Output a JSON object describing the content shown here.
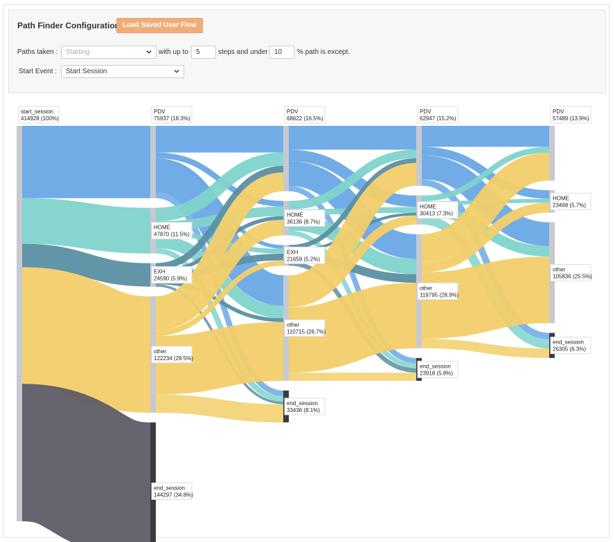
{
  "config": {
    "title": "Path Finder Configuration",
    "load_button": "Load Saved User Flow",
    "paths_taken_label": "Paths taken :",
    "paths_taken_placeholder": "Starting",
    "with_up_to": "with up to",
    "steps_value": "5",
    "steps_and_under": "steps and under",
    "percent_value": "10",
    "percent_suffix": "% path is except.",
    "start_event_label": "Start Event :",
    "start_event_value": "Start Session"
  },
  "chart_data": {
    "type": "sankey",
    "colors": {
      "start_session": "#6aa8e6",
      "PDV": "#6aa8e6",
      "HOME": "#7fd3cc",
      "EXH": "#5b8fa3",
      "other": "#f2cf6a",
      "end_session": "#5e5c66",
      "node_bar": "#c8c9d0",
      "end_bar": "#3a3a3f"
    },
    "columns": [
      {
        "nodes": [
          {
            "name": "start_session",
            "value": 414928,
            "label": "414928 (100%)"
          }
        ]
      },
      {
        "nodes": [
          {
            "name": "PDV",
            "value": 75937,
            "label": "75937 (18.3%)"
          },
          {
            "name": "HOME",
            "value": 47870,
            "label": "47870 (11.5%)"
          },
          {
            "name": "EXH",
            "value": 24590,
            "label": "24590 (5.9%)"
          },
          {
            "name": "other",
            "value": 122234,
            "label": "122234 (29.5%)"
          },
          {
            "name": "end_session",
            "value": 144297,
            "label": "144297 (34.8%)"
          }
        ]
      },
      {
        "nodes": [
          {
            "name": "PDV",
            "value": 68622,
            "label": "68622 (16.5%)"
          },
          {
            "name": "HOME",
            "value": 36136,
            "label": "36136 (8.7%)"
          },
          {
            "name": "EXH",
            "value": 21659,
            "label": "21659 (5.2%)"
          },
          {
            "name": "other",
            "value": 110715,
            "label": "110715 (26.7%)"
          },
          {
            "name": "end_session",
            "value": 33436,
            "label": "33436 (8.1%)"
          }
        ]
      },
      {
        "nodes": [
          {
            "name": "PDV",
            "value": 62947,
            "label": "62947 (15.2%)"
          },
          {
            "name": "HOME",
            "value": 30413,
            "label": "30413 (7.3%)"
          },
          {
            "name": "other",
            "value": 119795,
            "label": "119795 (28.9%)"
          },
          {
            "name": "end_session",
            "value": 23918,
            "label": "23918 (5.8%)"
          }
        ]
      },
      {
        "nodes": [
          {
            "name": "PDV",
            "value": 57489,
            "label": "57489 (13.9%)"
          },
          {
            "name": "HOME",
            "value": 23468,
            "label": "23468 (5.7%)"
          },
          {
            "name": "other",
            "value": 105836,
            "label": "105836 (25.5%)"
          },
          {
            "name": "end_session",
            "value": 26305,
            "label": "26305 (6.3%)"
          }
        ]
      }
    ],
    "links": [
      {
        "source": [
          0,
          0
        ],
        "target": [
          1,
          0
        ],
        "value": 75937
      },
      {
        "source": [
          0,
          0
        ],
        "target": [
          1,
          1
        ],
        "value": 47870
      },
      {
        "source": [
          0,
          0
        ],
        "target": [
          1,
          2
        ],
        "value": 24590
      },
      {
        "source": [
          0,
          0
        ],
        "target": [
          1,
          3
        ],
        "value": 122234
      },
      {
        "source": [
          0,
          0
        ],
        "target": [
          1,
          4
        ],
        "value": 144297
      },
      {
        "source": [
          1,
          0
        ],
        "target": [
          2,
          0
        ],
        "value": 28000
      },
      {
        "source": [
          1,
          0
        ],
        "target": [
          2,
          1
        ],
        "value": 6000
      },
      {
        "source": [
          1,
          0
        ],
        "target": [
          2,
          2
        ],
        "value": 4000
      },
      {
        "source": [
          1,
          0
        ],
        "target": [
          2,
          3
        ],
        "value": 32000
      },
      {
        "source": [
          1,
          0
        ],
        "target": [
          2,
          4
        ],
        "value": 5937
      },
      {
        "source": [
          1,
          1
        ],
        "target": [
          2,
          0
        ],
        "value": 14000
      },
      {
        "source": [
          1,
          1
        ],
        "target": [
          2,
          1
        ],
        "value": 10000
      },
      {
        "source": [
          1,
          1
        ],
        "target": [
          2,
          2
        ],
        "value": 5000
      },
      {
        "source": [
          1,
          1
        ],
        "target": [
          2,
          3
        ],
        "value": 13000
      },
      {
        "source": [
          1,
          1
        ],
        "target": [
          2,
          4
        ],
        "value": 5870
      },
      {
        "source": [
          1,
          2
        ],
        "target": [
          2,
          0
        ],
        "value": 7000
      },
      {
        "source": [
          1,
          2
        ],
        "target": [
          2,
          1
        ],
        "value": 4000
      },
      {
        "source": [
          1,
          2
        ],
        "target": [
          2,
          2
        ],
        "value": 7000
      },
      {
        "source": [
          1,
          2
        ],
        "target": [
          2,
          3
        ],
        "value": 4000
      },
      {
        "source": [
          1,
          2
        ],
        "target": [
          2,
          4
        ],
        "value": 2590
      },
      {
        "source": [
          1,
          3
        ],
        "target": [
          2,
          0
        ],
        "value": 19622
      },
      {
        "source": [
          1,
          3
        ],
        "target": [
          2,
          1
        ],
        "value": 16136
      },
      {
        "source": [
          1,
          3
        ],
        "target": [
          2,
          2
        ],
        "value": 5659
      },
      {
        "source": [
          1,
          3
        ],
        "target": [
          2,
          3
        ],
        "value": 61715
      },
      {
        "source": [
          1,
          3
        ],
        "target": [
          2,
          4
        ],
        "value": 19102
      },
      {
        "source": [
          2,
          0
        ],
        "target": [
          3,
          0
        ],
        "value": 25000
      },
      {
        "source": [
          2,
          0
        ],
        "target": [
          3,
          1
        ],
        "value": 12000
      },
      {
        "source": [
          2,
          0
        ],
        "target": [
          3,
          2
        ],
        "value": 26000
      },
      {
        "source": [
          2,
          0
        ],
        "target": [
          3,
          3
        ],
        "value": 5622
      },
      {
        "source": [
          2,
          1
        ],
        "target": [
          3,
          0
        ],
        "value": 9000
      },
      {
        "source": [
          2,
          1
        ],
        "target": [
          3,
          1
        ],
        "value": 6000
      },
      {
        "source": [
          2,
          1
        ],
        "target": [
          3,
          2
        ],
        "value": 16000
      },
      {
        "source": [
          2,
          1
        ],
        "target": [
          3,
          3
        ],
        "value": 5136
      },
      {
        "source": [
          2,
          2
        ],
        "target": [
          3,
          0
        ],
        "value": 5000
      },
      {
        "source": [
          2,
          2
        ],
        "target": [
          3,
          1
        ],
        "value": 3000
      },
      {
        "source": [
          2,
          2
        ],
        "target": [
          3,
          2
        ],
        "value": 9000
      },
      {
        "source": [
          2,
          2
        ],
        "target": [
          3,
          3
        ],
        "value": 4659
      },
      {
        "source": [
          2,
          3
        ],
        "target": [
          3,
          0
        ],
        "value": 23947
      },
      {
        "source": [
          2,
          3
        ],
        "target": [
          3,
          1
        ],
        "value": 9413
      },
      {
        "source": [
          2,
          3
        ],
        "target": [
          3,
          2
        ],
        "value": 68795
      },
      {
        "source": [
          2,
          3
        ],
        "target": [
          3,
          3
        ],
        "value": 8501
      },
      {
        "source": [
          3,
          0
        ],
        "target": [
          4,
          0
        ],
        "value": 22000
      },
      {
        "source": [
          3,
          0
        ],
        "target": [
          4,
          1
        ],
        "value": 9000
      },
      {
        "source": [
          3,
          0
        ],
        "target": [
          4,
          2
        ],
        "value": 25000
      },
      {
        "source": [
          3,
          0
        ],
        "target": [
          4,
          3
        ],
        "value": 6947
      },
      {
        "source": [
          3,
          1
        ],
        "target": [
          4,
          0
        ],
        "value": 6000
      },
      {
        "source": [
          3,
          1
        ],
        "target": [
          4,
          1
        ],
        "value": 4000
      },
      {
        "source": [
          3,
          1
        ],
        "target": [
          4,
          2
        ],
        "value": 11000
      },
      {
        "source": [
          3,
          1
        ],
        "target": [
          4,
          3
        ],
        "value": 9413
      },
      {
        "source": [
          3,
          2
        ],
        "target": [
          4,
          0
        ],
        "value": 29489
      },
      {
        "source": [
          3,
          2
        ],
        "target": [
          4,
          1
        ],
        "value": 10468
      },
      {
        "source": [
          3,
          2
        ],
        "target": [
          4,
          2
        ],
        "value": 69836
      },
      {
        "source": [
          3,
          2
        ],
        "target": [
          4,
          3
        ],
        "value": 9945
      }
    ]
  }
}
